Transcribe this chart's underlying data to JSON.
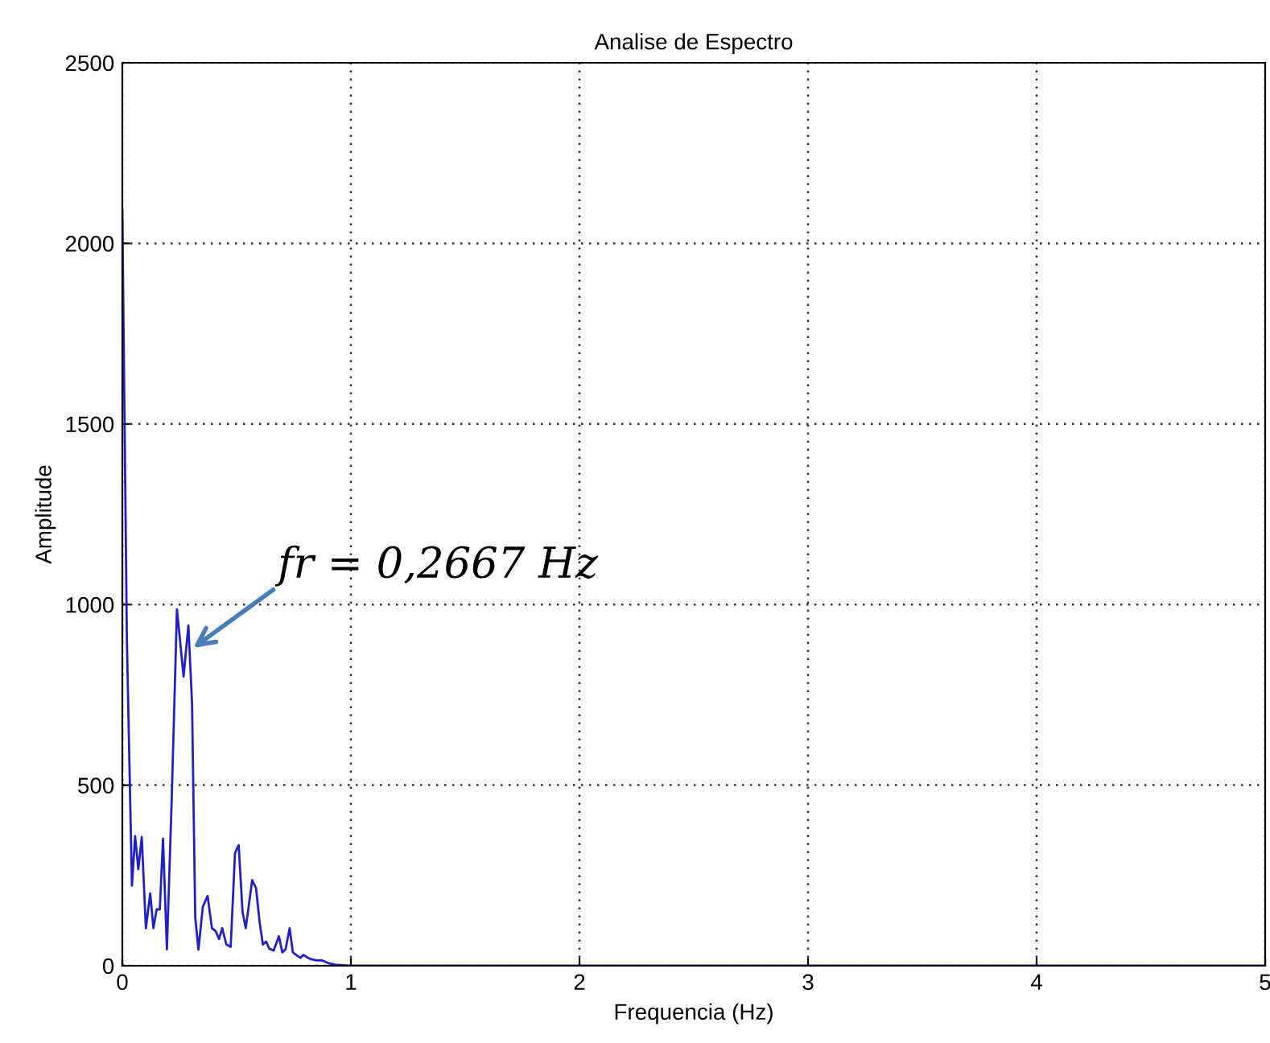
{
  "chart_data": {
    "type": "line",
    "title": "Analise de Espectro",
    "xlabel": "Frequencia (Hz)",
    "ylabel": "Amplitude",
    "x": [
      0,
      0.02,
      0.042,
      0.056,
      0.07,
      0.085,
      0.103,
      0.122,
      0.136,
      0.15,
      0.164,
      0.178,
      0.195,
      0.216,
      0.239,
      0.268,
      0.289,
      0.305,
      0.319,
      0.333,
      0.352,
      0.373,
      0.392,
      0.408,
      0.423,
      0.437,
      0.455,
      0.474,
      0.493,
      0.509,
      0.526,
      0.54,
      0.568,
      0.585,
      0.601,
      0.615,
      0.629,
      0.643,
      0.662,
      0.685,
      0.7,
      0.714,
      0.732,
      0.746,
      0.761,
      0.779,
      0.793,
      0.812,
      0.826,
      0.85,
      0.873,
      0.901,
      0.932,
      0.99,
      5
    ],
    "series": [
      {
        "color": "#1f1fcc",
        "values": [
          2090,
          900,
          222,
          359,
          267,
          356,
          104,
          200,
          104,
          156,
          156,
          352,
          45,
          460,
          987,
          801,
          942,
          727,
          134,
          45,
          163,
          193,
          104,
          96,
          74,
          104,
          59,
          52,
          312,
          334,
          148,
          104,
          237,
          215,
          119,
          59,
          67,
          47,
          42,
          82,
          37,
          45,
          104,
          37,
          30,
          22,
          30,
          22,
          18,
          15,
          15,
          7,
          3,
          0,
          0
        ]
      }
    ],
    "xlim": [
      0,
      5
    ],
    "xticks": [
      0,
      1,
      2,
      3,
      4,
      5
    ],
    "ylim": [
      0,
      2500
    ],
    "yticks": [
      0,
      500,
      1000,
      1500,
      2000,
      2500
    ],
    "grid": true,
    "line_style": "solid",
    "annotations": [
      {
        "text": "fr = 0,2667 Hz",
        "x": 0.31,
        "y": 880
      }
    ]
  }
}
